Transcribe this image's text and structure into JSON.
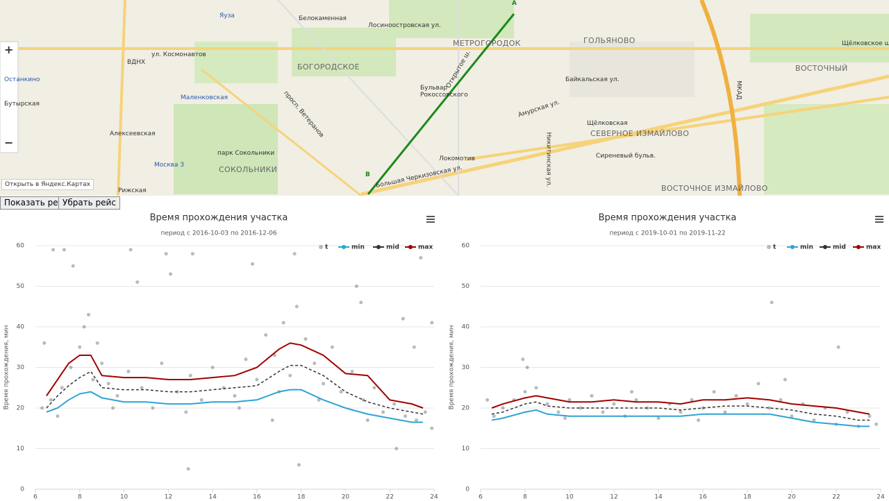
{
  "map": {
    "labels": [
      "Белокаменная",
      "Лосиноостровская ул.",
      "МЕТРОГОРОДОК",
      "ГОЛЬЯНОВО",
      "БОГОРОДСКОЕ",
      "ВДНХ",
      "ул. Космонавтов",
      "Останкино",
      "Бутырская",
      "Маленковская",
      "Бульвар Рокоссовского",
      "ВОСТОЧНЫЙ",
      "Щёлковское ш.",
      "Щёлковская",
      "СЕВЕРНОЕ ИЗМАЙЛОВО",
      "Алексеевская",
      "Москва 3",
      "Рижская",
      "СОКОЛЬНИКИ",
      "парк Сокольники",
      "Локомотив",
      "Большая Черкизовская ул.",
      "ВОСТОЧНОЕ ИЗМАЙЛОВО",
      "Сиреневый бульв.",
      "МКАД",
      "Яуза",
      "Байкальская ул.",
      "Амурская ул.",
      "Никитинская ул.",
      "просп. Ветеранов",
      "Открытое ш."
    ],
    "marker_a": "A",
    "marker_b": "B",
    "zoom_in": "+",
    "zoom_out": "−",
    "open_link": "Открыть в Яндекс.Картах"
  },
  "buttons": [
    "Показать рейс",
    "Убрать рейс"
  ],
  "chart_data": [
    {
      "type": "line",
      "title": "Время прохождения участка",
      "subtitle": "период с 2016-10-03 по 2016-12-06",
      "y_label": "Время прохождения, мин",
      "xlim": [
        6,
        24
      ],
      "xticks": [
        6,
        8,
        10,
        12,
        14,
        16,
        18,
        20,
        22,
        24
      ],
      "ylim": [
        0,
        60
      ],
      "yticks": [
        0,
        10,
        20,
        30,
        40,
        50,
        60
      ],
      "grid": true,
      "x": [
        6.5,
        7,
        7.5,
        8,
        8.5,
        9,
        10,
        11,
        12,
        13,
        14,
        15,
        16,
        17,
        17.5,
        18,
        19,
        20,
        21,
        22,
        23,
        23.5
      ],
      "series": [
        {
          "name": "t",
          "type": "scatter",
          "color": "#4a5553",
          "x": [
            6.8,
            7.3,
            7.7,
            10.3,
            10.6,
            11.9,
            12.1,
            13.1,
            12.9,
            17.7,
            20.5,
            20.7,
            22.6,
            23.4,
            23.9,
            23.1,
            16.7,
            17.9,
            22.3,
            6.4,
            15.8,
            6.3,
            6.7,
            7.2,
            7.6,
            8.0,
            8.2,
            8.4,
            8.6,
            9.0,
            9.3,
            9.7,
            10.2,
            10.8,
            11.3,
            11.7,
            12.4,
            13.0,
            13.5,
            14.0,
            14.5,
            15.0,
            15.5,
            16.0,
            16.4,
            16.8,
            17.2,
            17.5,
            17.8,
            18.2,
            18.6,
            19.0,
            19.4,
            19.8,
            20.3,
            20.8,
            21.3,
            21.7,
            22.2,
            22.7,
            23.2,
            23.6,
            23.9,
            7.0,
            9.5,
            12.8,
            15.2,
            18.8,
            21.0,
            8.8,
            17.0
          ],
          "values": [
            59,
            59,
            55,
            59,
            51,
            58,
            53,
            58,
            5,
            58,
            50,
            46,
            42,
            57,
            41,
            35,
            17,
            6,
            10,
            36,
            55.5,
            20,
            22,
            25,
            30,
            35,
            40,
            43,
            27,
            31,
            26,
            23,
            29,
            25,
            20,
            31,
            24,
            28,
            22,
            30,
            25,
            23,
            32,
            27,
            38,
            33,
            41,
            28,
            45,
            37,
            31,
            26,
            35,
            24,
            29,
            22,
            25,
            19,
            21,
            18,
            17,
            19,
            15,
            18,
            20,
            19,
            20,
            22,
            17,
            36,
            24
          ]
        },
        {
          "name": "min",
          "color": "#2ea3d6",
          "values": [
            19,
            20,
            22,
            23.5,
            24,
            22.5,
            21.5,
            21.5,
            21,
            21,
            21.5,
            21.5,
            22,
            24,
            24.5,
            24.5,
            22,
            20,
            18.5,
            17.5,
            16.5,
            16.5
          ]
        },
        {
          "name": "mid",
          "color": "#333333",
          "values": [
            20,
            23,
            25.5,
            27.5,
            29,
            25,
            24.5,
            24.5,
            24,
            24,
            24.5,
            25,
            25.5,
            29,
            30.5,
            30.5,
            28,
            24,
            21.5,
            20,
            19,
            18.5
          ]
        },
        {
          "name": "max",
          "color": "#a00000",
          "values": [
            23,
            27,
            31,
            33,
            33,
            28,
            27.5,
            27.5,
            27,
            27,
            27.5,
            28,
            30,
            34.5,
            36,
            35.5,
            33,
            28.5,
            28,
            22,
            21,
            20
          ]
        }
      ]
    },
    {
      "type": "line",
      "title": "Время прохождения участка",
      "subtitle": "период с 2019-10-01 по 2019-11-22",
      "y_label": "Время прохождения, мин",
      "xlim": [
        6,
        24
      ],
      "xticks": [
        6,
        8,
        10,
        12,
        14,
        16,
        18,
        20,
        22,
        24
      ],
      "ylim": [
        0,
        60
      ],
      "yticks": [
        0,
        10,
        20,
        30,
        40,
        50,
        60
      ],
      "grid": true,
      "x": [
        6.5,
        7,
        8,
        8.5,
        9,
        10,
        11,
        12,
        13,
        14,
        15,
        16,
        17,
        18,
        19,
        20,
        21,
        22,
        23,
        23.5
      ],
      "series": [
        {
          "name": "t",
          "type": "scatter",
          "color": "#4a5553",
          "x": [
            19.1,
            22.1,
            7.9,
            8.1,
            6.3,
            6.6,
            7.0,
            7.5,
            8.0,
            8.5,
            9.0,
            9.5,
            10,
            10.5,
            11,
            11.5,
            12,
            12.5,
            13,
            13.5,
            14,
            14.5,
            15,
            15.5,
            16,
            16.5,
            17,
            17.5,
            18,
            18.5,
            19,
            19.5,
            20,
            20.5,
            21,
            21.5,
            22,
            22.5,
            23,
            23.5,
            23.8,
            12.8,
            15.8,
            19.7,
            9.8
          ],
          "values": [
            46,
            35,
            32,
            30,
            22,
            18,
            20,
            22,
            24,
            25,
            21,
            19,
            22,
            20,
            23,
            19,
            21,
            18,
            22,
            20,
            17.5,
            21,
            19,
            22,
            20,
            24,
            19,
            23,
            21,
            26,
            20,
            22,
            18,
            21,
            17,
            20,
            16,
            19,
            15.5,
            18,
            16,
            24,
            17,
            27,
            17.5
          ]
        },
        {
          "name": "min",
          "color": "#2ea3d6",
          "values": [
            17,
            17.5,
            19,
            19.5,
            18.5,
            18,
            18,
            18,
            18,
            18,
            18,
            18.5,
            18.5,
            18.5,
            18.5,
            17.5,
            16.5,
            16,
            15.5,
            15.5
          ]
        },
        {
          "name": "mid",
          "color": "#333333",
          "values": [
            18.5,
            19,
            21,
            21.5,
            20.5,
            20,
            20,
            20,
            20,
            20,
            19.5,
            20,
            20.5,
            20.5,
            20,
            19.5,
            18.5,
            18,
            17,
            17
          ]
        },
        {
          "name": "max",
          "color": "#a00000",
          "values": [
            20,
            21,
            22.5,
            23,
            22.5,
            21.5,
            21.5,
            22,
            21.5,
            21.5,
            21,
            22,
            22,
            22.5,
            22,
            21,
            20.5,
            20,
            19,
            18.5
          ]
        }
      ]
    }
  ]
}
